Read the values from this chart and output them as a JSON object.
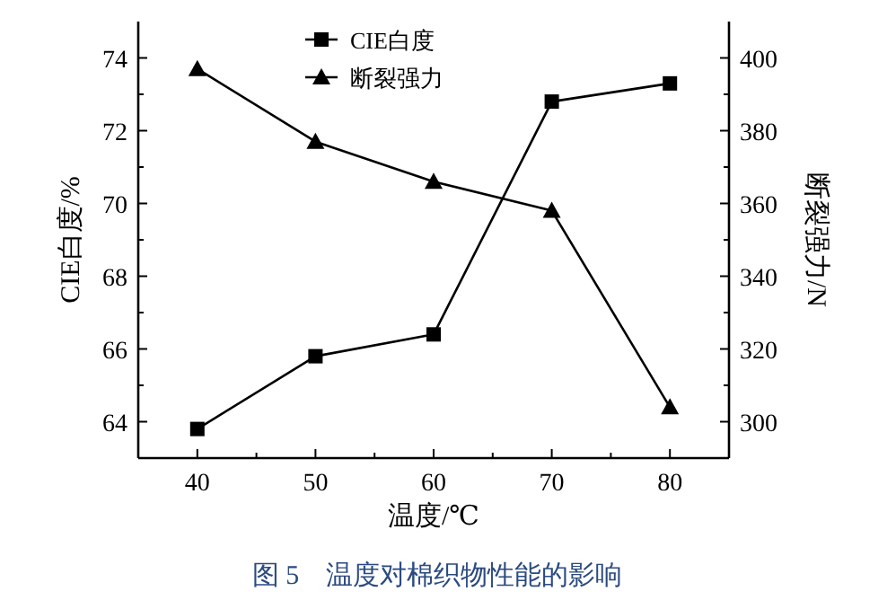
{
  "chart_data": {
    "type": "line",
    "title": "图 5　温度对棉织物性能的影响",
    "xlabel": "温度/℃",
    "ylabel": "CIE白度/%",
    "y2label": "断裂强力/N",
    "x": [
      40,
      50,
      60,
      70,
      80
    ],
    "series": [
      {
        "name": "CIE白度",
        "color": "#000000",
        "marker": "square",
        "values": [
          63.8,
          65.8,
          66.4,
          72.8,
          73.3
        ]
      },
      {
        "name": "断裂强力",
        "color": "#000000",
        "marker": "triangle",
        "axis": "y2",
        "values": [
          397,
          377,
          366,
          358,
          304
        ]
      }
    ],
    "xlim": [
      35,
      85
    ],
    "xticks": [
      40,
      50,
      60,
      70,
      80
    ],
    "ylim": [
      63,
      75
    ],
    "yticks": [
      64,
      66,
      68,
      70,
      72,
      74
    ],
    "y2lim": [
      290,
      410
    ],
    "y2ticks": [
      300,
      320,
      340,
      360,
      380,
      400
    ],
    "legend": "top",
    "grid": false
  }
}
